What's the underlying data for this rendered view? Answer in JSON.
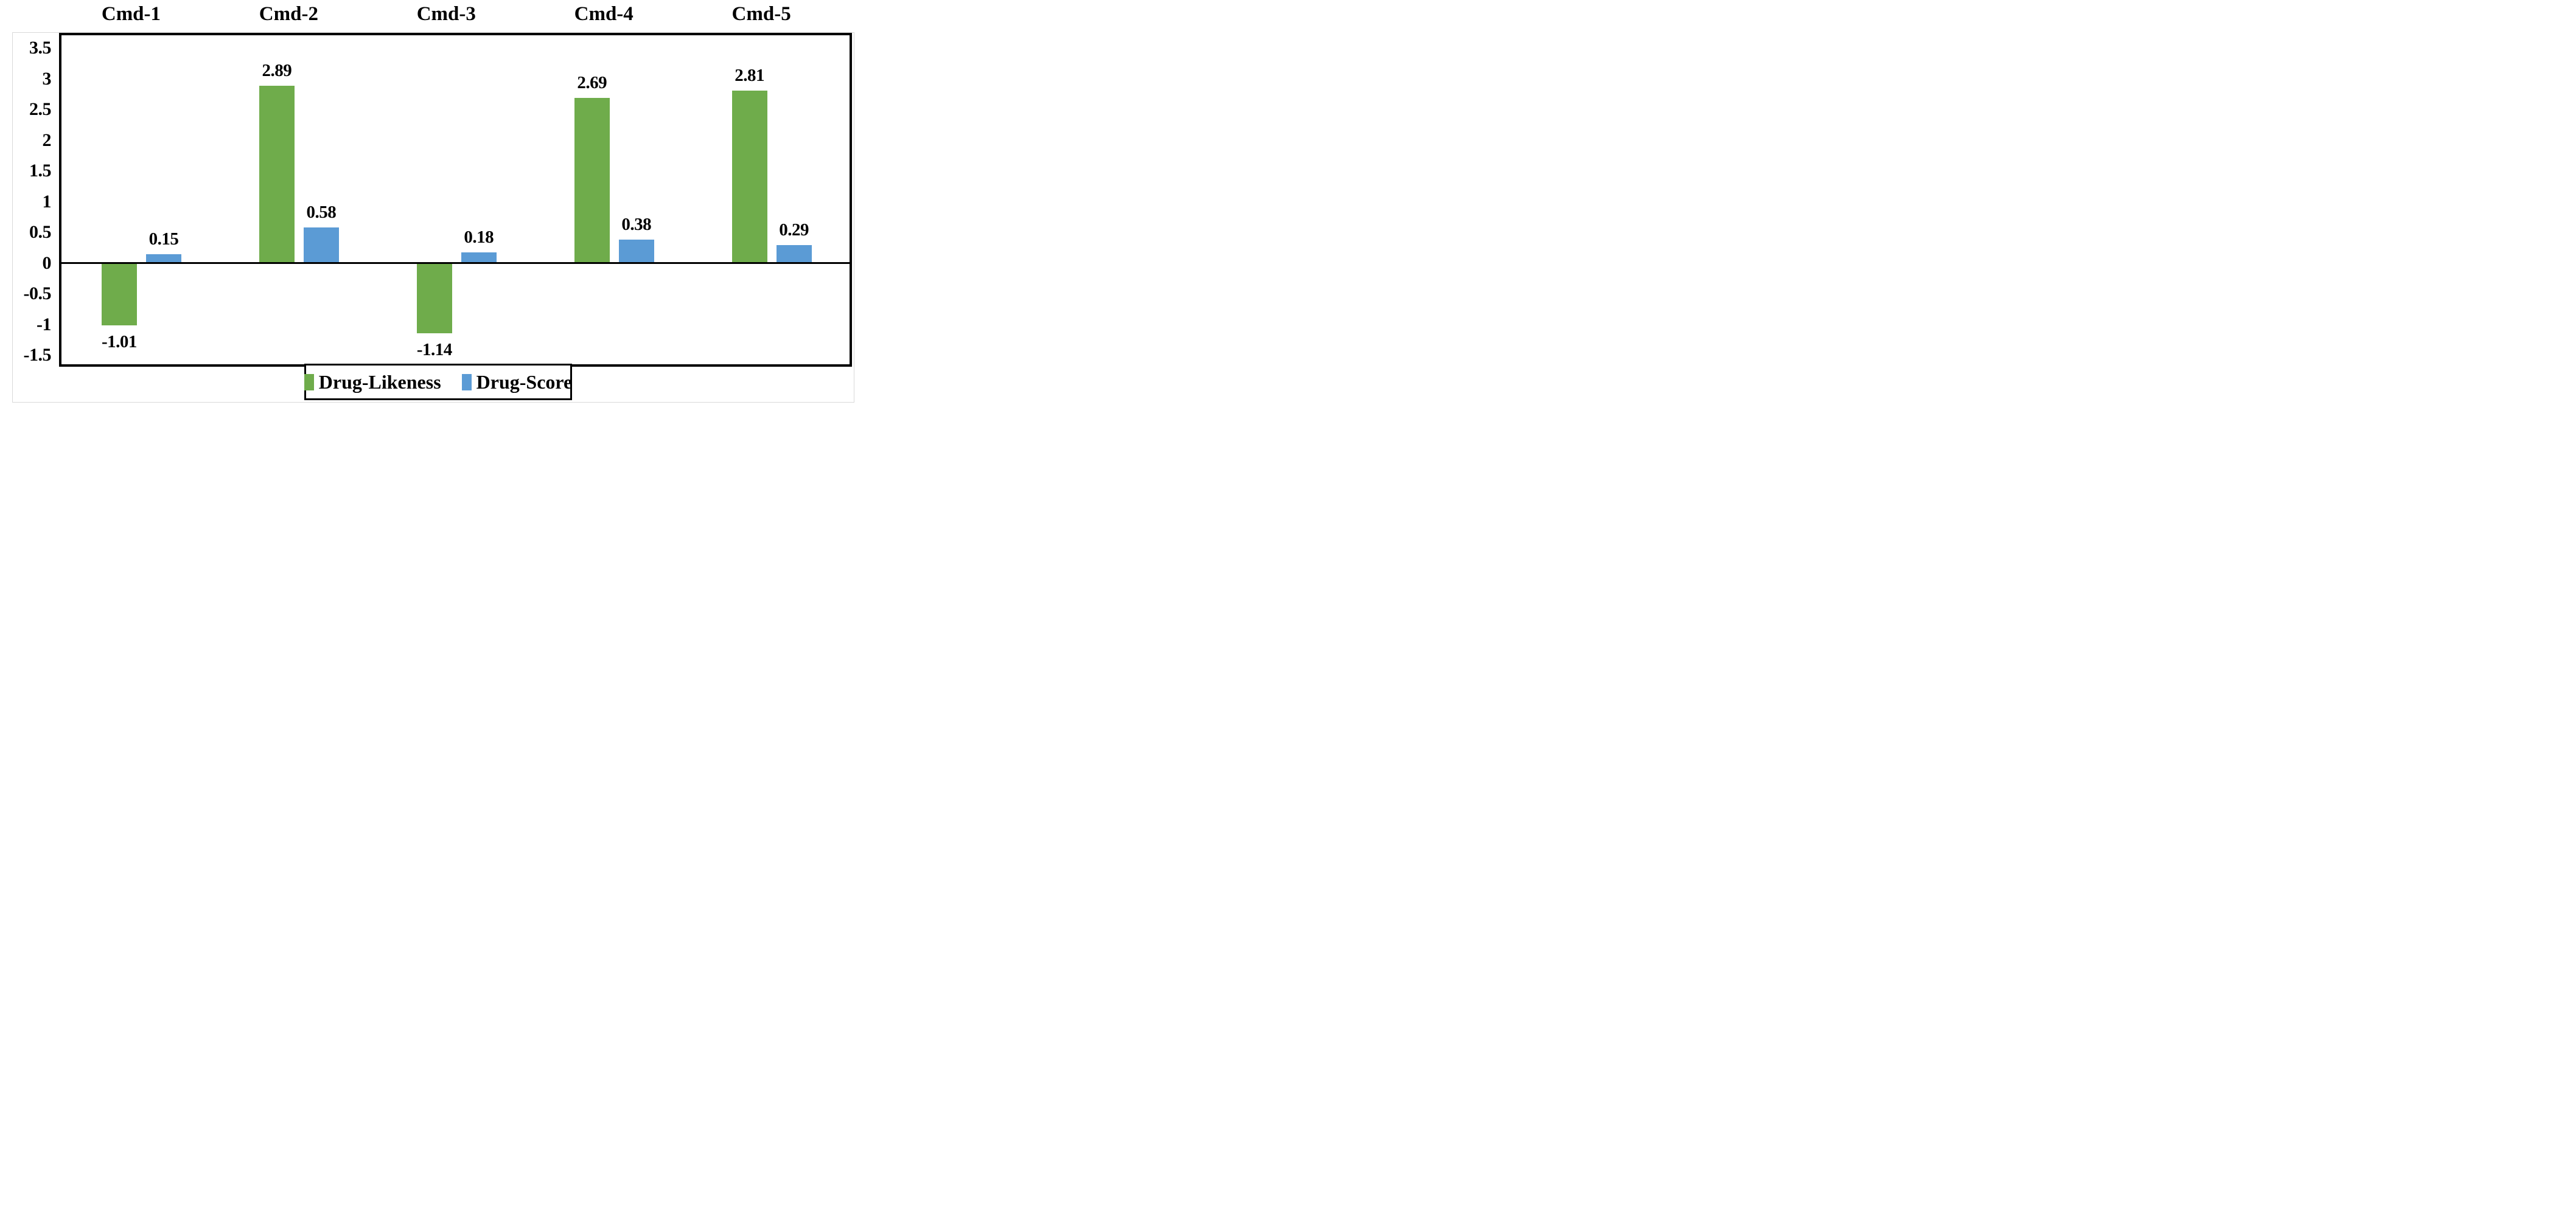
{
  "figure": {
    "background_color": "#ffffff",
    "frame_color": "#d9d9d9",
    "plot_border_color": "#000000",
    "zero_line_color": "#000000"
  },
  "chart_data": {
    "type": "bar",
    "title": "",
    "xlabel": "",
    "ylabel": "",
    "categories": [
      "Cmd-1",
      "Cmd-2",
      "Cmd-3",
      "Cmd-4",
      "Cmd-5"
    ],
    "series": [
      {
        "name": "Drug-Likeness",
        "color": "#6FAC4B",
        "values": [
          -1.01,
          2.89,
          -1.14,
          2.69,
          2.81
        ],
        "value_labels": [
          "-1.01",
          "2.89",
          "-1.14",
          "2.69",
          "2.81"
        ]
      },
      {
        "name": "Drug-Score",
        "color": "#5B9BD5",
        "values": [
          0.15,
          0.58,
          0.18,
          0.38,
          0.29
        ],
        "value_labels": [
          "0.15",
          "0.58",
          "0.18",
          "0.38",
          "0.29"
        ]
      }
    ],
    "y_ticks": [
      {
        "label": "3.5",
        "value": 3.5
      },
      {
        "label": "3",
        "value": 3
      },
      {
        "label": "2.5",
        "value": 2.5
      },
      {
        "label": "2",
        "value": 2
      },
      {
        "label": "1.5",
        "value": 1.5
      },
      {
        "label": "1",
        "value": 1
      },
      {
        "label": "0.5",
        "value": 0.5
      },
      {
        "label": "0",
        "value": 0
      },
      {
        "label": "-0.5",
        "value": -0.5
      },
      {
        "label": "-1",
        "value": -1
      },
      {
        "label": "-1.5",
        "value": -1.5
      }
    ],
    "ylim": [
      -1.64,
      3.74
    ],
    "grid": false,
    "zero_line": true,
    "value_labels_shown": true,
    "legend_position": "bottom-center",
    "legend_bordered": true
  }
}
